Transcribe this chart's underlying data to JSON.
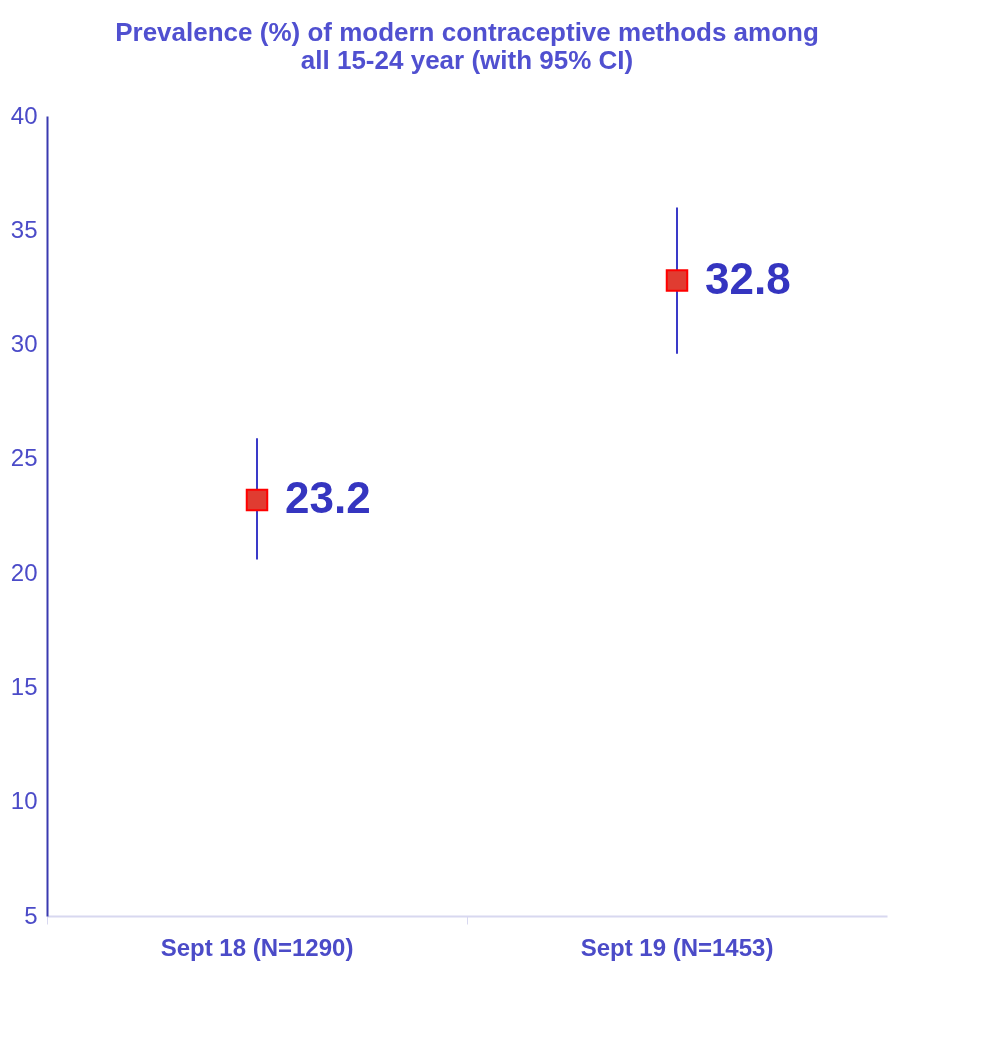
{
  "chart_data": {
    "type": "scatter",
    "title": "Prevalence (%) of modern contraceptive methods among\nall 15-24 year  (with 95% CI)",
    "categories": [
      "Sept 18 (N=1290)",
      "Sept 19 (N=1453)"
    ],
    "series": [
      {
        "color": "#e03c31",
        "values": [
          23.2,
          32.8
        ],
        "errors": [
          [
            20.6,
            25.9
          ],
          [
            29.6,
            36.0
          ]
        ]
      }
    ],
    "ylim": [
      5,
      40
    ],
    "yticks": [
      5,
      10,
      15,
      20,
      25,
      30,
      35,
      40
    ],
    "grid": false,
    "marker": "square",
    "data_labels": true
  }
}
